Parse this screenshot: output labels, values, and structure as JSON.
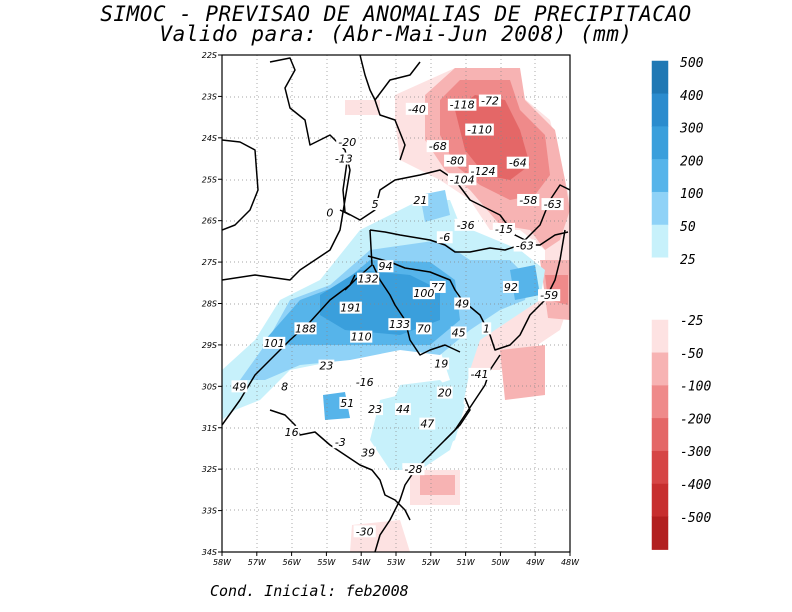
{
  "title_line1": "SIMOC - PREVISAO DE ANOMALIAS DE PRECIPITACAO",
  "title_line2": "Valido para: (Abr-Mai-Jun 2008) (mm)",
  "footer": "Cond. Inicial: feb2008",
  "lat_ticks": [
    "22S",
    "23S",
    "24S",
    "25S",
    "26S",
    "27S",
    "28S",
    "29S",
    "30S",
    "31S",
    "32S",
    "33S",
    "34S"
  ],
  "lon_ticks": [
    "58W",
    "57W",
    "56W",
    "55W",
    "54W",
    "53W",
    "52W",
    "51W",
    "50W",
    "49W",
    "48W"
  ],
  "colorbar": [
    {
      "label": "500",
      "color": "#1f78b4"
    },
    {
      "label": "400",
      "color": "#2b8cce"
    },
    {
      "label": "300",
      "color": "#3a9fdc"
    },
    {
      "label": "200",
      "color": "#56b4ea"
    },
    {
      "label": "100",
      "color": "#8fd2f7"
    },
    {
      "label": "50",
      "color": "#c7f1fb"
    },
    {
      "label": "25",
      "color": "#ffffff"
    },
    {
      "label": "-25",
      "color": "#fde2e2"
    },
    {
      "label": "-50",
      "color": "#f7b3b3"
    },
    {
      "label": "-100",
      "color": "#ef8a8a"
    },
    {
      "label": "-200",
      "color": "#e46767"
    },
    {
      "label": "-300",
      "color": "#d64545"
    },
    {
      "label": "-400",
      "color": "#c72e2e"
    },
    {
      "label": "-500",
      "color": "#b21f1f"
    }
  ],
  "contour_labels": [
    {
      "text": "-40",
      "lon": -52.4,
      "lat": -23.3
    },
    {
      "text": "-118",
      "lon": -51.1,
      "lat": -23.2
    },
    {
      "text": "-72",
      "lon": -50.3,
      "lat": -23.1
    },
    {
      "text": "-110",
      "lon": -50.6,
      "lat": -23.8
    },
    {
      "text": "-20",
      "lon": -54.4,
      "lat": -24.1
    },
    {
      "text": "-68",
      "lon": -51.8,
      "lat": -24.2
    },
    {
      "text": "-13",
      "lon": -54.5,
      "lat": -24.5
    },
    {
      "text": "-80",
      "lon": -51.3,
      "lat": -24.55
    },
    {
      "text": "-64",
      "lon": -49.5,
      "lat": -24.6
    },
    {
      "text": "-124",
      "lon": -50.5,
      "lat": -24.8
    },
    {
      "text": "-104",
      "lon": -51.1,
      "lat": -25.0
    },
    {
      "text": "-58",
      "lon": -49.2,
      "lat": -25.5
    },
    {
      "text": "-63",
      "lon": -48.5,
      "lat": -25.6
    },
    {
      "text": "0",
      "lon": -54.9,
      "lat": -25.8
    },
    {
      "text": "5",
      "lon": -53.6,
      "lat": -25.6
    },
    {
      "text": "21",
      "lon": -52.3,
      "lat": -25.5
    },
    {
      "text": "-36",
      "lon": -51.0,
      "lat": -26.1
    },
    {
      "text": "-15",
      "lon": -49.9,
      "lat": -26.2
    },
    {
      "text": "-6",
      "lon": -51.6,
      "lat": -26.4
    },
    {
      "text": "-63",
      "lon": -49.3,
      "lat": -26.6
    },
    {
      "text": "94",
      "lon": -53.3,
      "lat": -27.1
    },
    {
      "text": "132",
      "lon": -53.8,
      "lat": -27.4
    },
    {
      "text": "77",
      "lon": -51.8,
      "lat": -27.6
    },
    {
      "text": "92",
      "lon": -49.7,
      "lat": -27.6
    },
    {
      "text": "100",
      "lon": -52.2,
      "lat": -27.75
    },
    {
      "text": "-59",
      "lon": -48.6,
      "lat": -27.8
    },
    {
      "text": "49",
      "lon": -51.1,
      "lat": -28.0
    },
    {
      "text": "191",
      "lon": -54.3,
      "lat": -28.1
    },
    {
      "text": "188",
      "lon": -55.6,
      "lat": -28.6
    },
    {
      "text": "133",
      "lon": -52.9,
      "lat": -28.5
    },
    {
      "text": "70",
      "lon": -52.2,
      "lat": -28.6
    },
    {
      "text": "45",
      "lon": -51.2,
      "lat": -28.7
    },
    {
      "text": "1",
      "lon": -50.4,
      "lat": -28.6
    },
    {
      "text": "101",
      "lon": -56.5,
      "lat": -28.95
    },
    {
      "text": "110",
      "lon": -54.0,
      "lat": -28.8
    },
    {
      "text": "23",
      "lon": -55.0,
      "lat": -29.5
    },
    {
      "text": "19",
      "lon": -51.7,
      "lat": -29.45
    },
    {
      "text": "-41",
      "lon": -50.6,
      "lat": -29.7
    },
    {
      "text": "49",
      "lon": -57.5,
      "lat": -30.0
    },
    {
      "text": "8",
      "lon": -56.2,
      "lat": -30.0
    },
    {
      "text": "-16",
      "lon": -53.9,
      "lat": -29.9
    },
    {
      "text": "20",
      "lon": -51.6,
      "lat": -30.15
    },
    {
      "text": "51",
      "lon": -54.4,
      "lat": -30.4
    },
    {
      "text": "23",
      "lon": -53.6,
      "lat": -30.55
    },
    {
      "text": "44",
      "lon": -52.8,
      "lat": -30.55
    },
    {
      "text": "47",
      "lon": -52.1,
      "lat": -30.9
    },
    {
      "text": "16",
      "lon": -56.0,
      "lat": -31.1
    },
    {
      "text": "-3",
      "lon": -54.6,
      "lat": -31.35
    },
    {
      "text": "39",
      "lon": -53.8,
      "lat": -31.6
    },
    {
      "text": "-28",
      "lon": -52.5,
      "lat": -32.0
    },
    {
      "text": "-30",
      "lon": -53.9,
      "lat": -33.5
    }
  ]
}
